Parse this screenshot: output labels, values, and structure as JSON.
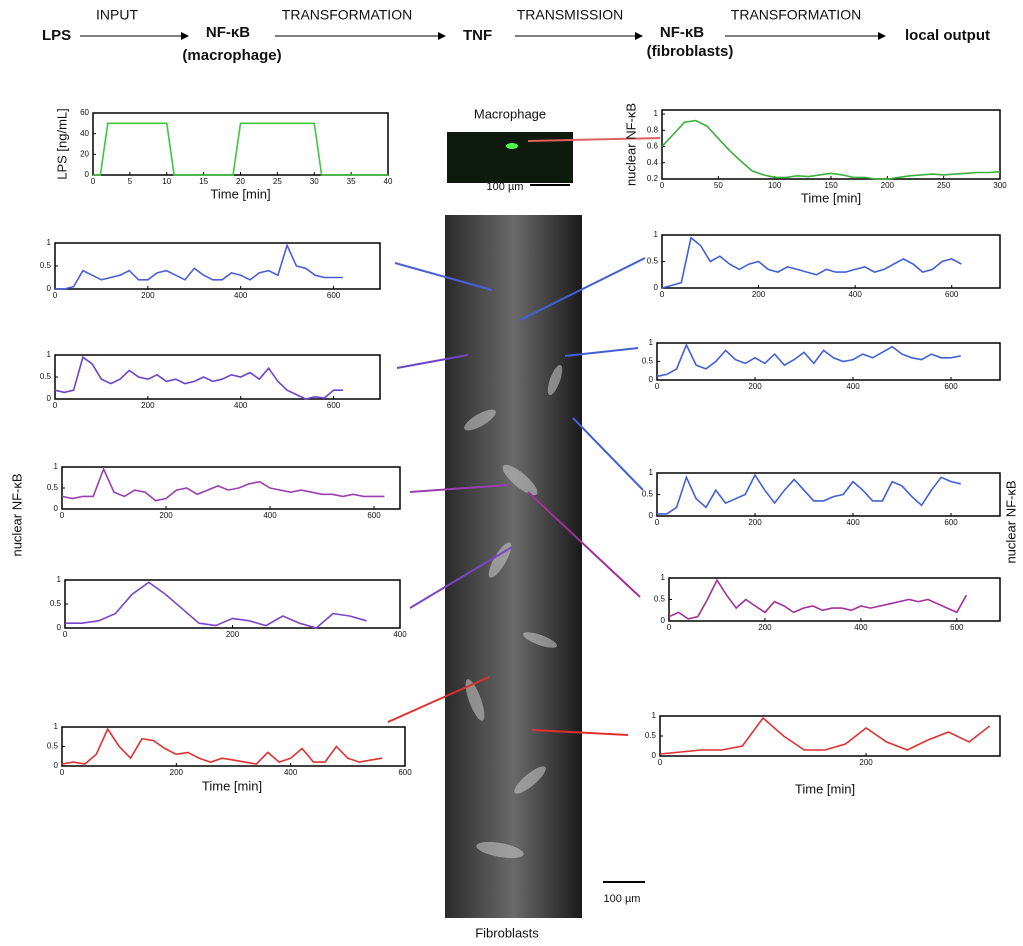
{
  "flow": {
    "nodes": [
      {
        "label": "LPS"
      },
      {
        "label": "NF-κB",
        "sublabel": "(macrophage)"
      },
      {
        "label": "TNF"
      },
      {
        "label": "NF-κB",
        "sublabel": "(fibroblasts)"
      },
      {
        "label": "local output"
      }
    ],
    "steps": [
      "INPUT",
      "TRANSFORMATION",
      "TRANSMISSION",
      "TRANSFORMATION"
    ]
  },
  "images": {
    "macrophage_title": "Macrophage",
    "macrophage_scale": "100 µm",
    "fibroblast_title": "Fibroblasts",
    "fibroblast_scale": "100 µm"
  },
  "left_ylabel": "nuclear NF-κB",
  "right_ylabel": "nuclear NF-κB",
  "left_xlabel": "Time [min]",
  "right_xlabel": "Time [min]",
  "chart_data": [
    {
      "type": "line",
      "ylabel": "LPS [ng/mL]",
      "xlabel": "Time [min]",
      "color": "#3cc83c",
      "xlim": [
        0,
        40
      ],
      "xticks": [
        0,
        5,
        10,
        15,
        20,
        25,
        30,
        35,
        40
      ],
      "ylim": [
        0,
        60
      ],
      "yticks": [
        0,
        20,
        40,
        60
      ],
      "x": [
        0,
        1,
        2,
        10,
        11,
        19,
        20,
        30,
        31,
        40
      ],
      "values": [
        0,
        0,
        50,
        50,
        0,
        0,
        50,
        50,
        0,
        0
      ]
    },
    {
      "type": "line",
      "ylabel": "nuclear NF-κB",
      "xlabel": "Time [min]",
      "color": "#3cb03c",
      "xlim": [
        0,
        300
      ],
      "xticks": [
        0,
        50,
        100,
        150,
        200,
        250,
        300
      ],
      "ylim": [
        0.2,
        1.05
      ],
      "yticks": [
        0.2,
        0.4,
        0.6,
        0.8,
        1
      ],
      "x": [
        0,
        10,
        20,
        30,
        40,
        50,
        60,
        70,
        80,
        90,
        100,
        110,
        120,
        130,
        140,
        150,
        160,
        170,
        180,
        190,
        200,
        210,
        220,
        230,
        240,
        250,
        260,
        270,
        280,
        290,
        300
      ],
      "values": [
        0.6,
        0.75,
        0.9,
        0.92,
        0.85,
        0.7,
        0.55,
        0.42,
        0.3,
        0.25,
        0.22,
        0.22,
        0.24,
        0.23,
        0.25,
        0.27,
        0.25,
        0.22,
        0.22,
        0.2,
        0.2,
        0.22,
        0.24,
        0.25,
        0.26,
        0.25,
        0.26,
        0.27,
        0.28,
        0.28,
        0.29
      ]
    },
    {
      "type": "line",
      "color": "#4a5fd8",
      "xlim": [
        0,
        700
      ],
      "xticks": [
        0,
        200,
        400,
        600
      ],
      "ylim": [
        0,
        1
      ],
      "yticks": [
        0,
        0.5,
        1
      ],
      "x": [
        0,
        20,
        40,
        60,
        80,
        100,
        120,
        140,
        160,
        180,
        200,
        220,
        240,
        260,
        280,
        300,
        320,
        340,
        360,
        380,
        400,
        420,
        440,
        460,
        480,
        500,
        520,
        540,
        560,
        580,
        600,
        620
      ],
      "values": [
        0,
        0,
        0.05,
        0.4,
        0.3,
        0.2,
        0.25,
        0.3,
        0.4,
        0.2,
        0.2,
        0.35,
        0.4,
        0.3,
        0.2,
        0.45,
        0.3,
        0.2,
        0.2,
        0.35,
        0.3,
        0.2,
        0.35,
        0.4,
        0.3,
        0.95,
        0.5,
        0.45,
        0.3,
        0.25,
        0.25,
        0.25
      ]
    },
    {
      "type": "line",
      "color": "#6a45c8",
      "xlim": [
        0,
        700
      ],
      "xticks": [
        0,
        200,
        400,
        600
      ],
      "ylim": [
        0,
        1
      ],
      "yticks": [
        0,
        0.5,
        1
      ],
      "x": [
        0,
        20,
        40,
        60,
        80,
        100,
        120,
        140,
        160,
        180,
        200,
        220,
        240,
        260,
        280,
        300,
        320,
        340,
        360,
        380,
        400,
        420,
        440,
        460,
        480,
        500,
        520,
        540,
        560,
        580,
        600,
        620
      ],
      "values": [
        0.2,
        0.15,
        0.2,
        0.95,
        0.8,
        0.45,
        0.35,
        0.45,
        0.65,
        0.5,
        0.45,
        0.55,
        0.4,
        0.45,
        0.35,
        0.4,
        0.5,
        0.4,
        0.45,
        0.55,
        0.5,
        0.6,
        0.45,
        0.7,
        0.4,
        0.2,
        0.1,
        0,
        0.05,
        0.02,
        0.2,
        0.2
      ]
    },
    {
      "type": "line",
      "color": "#9a3fb0",
      "xlim": [
        0,
        650
      ],
      "xticks": [
        0,
        200,
        400,
        600
      ],
      "ylim": [
        0,
        1
      ],
      "yticks": [
        0,
        0.5,
        1
      ],
      "x": [
        0,
        20,
        40,
        60,
        80,
        100,
        120,
        140,
        160,
        180,
        200,
        220,
        240,
        260,
        280,
        300,
        320,
        340,
        360,
        380,
        400,
        420,
        440,
        460,
        480,
        500,
        520,
        540,
        560,
        580,
        600,
        620
      ],
      "values": [
        0.3,
        0.25,
        0.3,
        0.3,
        0.95,
        0.4,
        0.3,
        0.45,
        0.4,
        0.2,
        0.25,
        0.45,
        0.5,
        0.35,
        0.45,
        0.55,
        0.45,
        0.5,
        0.6,
        0.65,
        0.5,
        0.45,
        0.4,
        0.45,
        0.4,
        0.35,
        0.35,
        0.3,
        0.35,
        0.3,
        0.3,
        0.3
      ]
    },
    {
      "type": "line",
      "color": "#7a45c8",
      "xlim": [
        0,
        400
      ],
      "xticks": [
        0,
        200,
        400
      ],
      "ylim": [
        0,
        1
      ],
      "yticks": [
        0,
        0.5,
        1
      ],
      "x": [
        0,
        20,
        40,
        60,
        80,
        100,
        120,
        140,
        160,
        180,
        200,
        220,
        240,
        260,
        280,
        300,
        320,
        340,
        360
      ],
      "values": [
        0.1,
        0.1,
        0.15,
        0.3,
        0.7,
        0.95,
        0.7,
        0.4,
        0.1,
        0.05,
        0.2,
        0.15,
        0.05,
        0.25,
        0.1,
        0,
        0.3,
        0.25,
        0.15
      ]
    },
    {
      "type": "line",
      "color": "#e03030",
      "xlim": [
        0,
        600
      ],
      "xticks": [
        0,
        200,
        400,
        600
      ],
      "ylim": [
        0,
        1
      ],
      "yticks": [
        0,
        0.5,
        1
      ],
      "x": [
        0,
        20,
        40,
        60,
        80,
        100,
        120,
        140,
        160,
        180,
        200,
        220,
        240,
        260,
        280,
        300,
        320,
        340,
        360,
        380,
        400,
        420,
        440,
        460,
        480,
        500,
        520,
        540,
        560
      ],
      "values": [
        0.05,
        0.1,
        0.05,
        0.3,
        0.95,
        0.5,
        0.2,
        0.7,
        0.65,
        0.45,
        0.3,
        0.35,
        0.2,
        0.1,
        0.2,
        0.15,
        0.1,
        0.05,
        0.35,
        0.1,
        0.2,
        0.45,
        0.1,
        0.1,
        0.5,
        0.2,
        0.1,
        0.15,
        0.2
      ]
    },
    {
      "type": "line",
      "color": "#4060d8",
      "xlim": [
        0,
        700
      ],
      "xticks": [
        0,
        200,
        400,
        600
      ],
      "ylim": [
        0,
        1
      ],
      "yticks": [
        0,
        0.5,
        1
      ],
      "x": [
        0,
        20,
        40,
        60,
        80,
        100,
        120,
        140,
        160,
        180,
        200,
        220,
        240,
        260,
        280,
        300,
        320,
        340,
        360,
        380,
        400,
        420,
        440,
        460,
        480,
        500,
        520,
        540,
        560,
        580,
        600,
        620
      ],
      "values": [
        0,
        0.05,
        0.1,
        0.95,
        0.8,
        0.5,
        0.6,
        0.45,
        0.35,
        0.45,
        0.5,
        0.35,
        0.3,
        0.4,
        0.35,
        0.3,
        0.25,
        0.35,
        0.3,
        0.3,
        0.35,
        0.4,
        0.3,
        0.35,
        0.45,
        0.55,
        0.45,
        0.3,
        0.35,
        0.5,
        0.55,
        0.45
      ]
    },
    {
      "type": "line",
      "color": "#4060d8",
      "xlim": [
        0,
        700
      ],
      "xticks": [
        0,
        200,
        400,
        600
      ],
      "ylim": [
        0,
        1
      ],
      "yticks": [
        0,
        0.5,
        1
      ],
      "x": [
        0,
        20,
        40,
        60,
        80,
        100,
        120,
        140,
        160,
        180,
        200,
        220,
        240,
        260,
        280,
        300,
        320,
        340,
        360,
        380,
        400,
        420,
        440,
        460,
        480,
        500,
        520,
        540,
        560,
        580,
        600,
        620
      ],
      "values": [
        0.1,
        0.15,
        0.3,
        0.95,
        0.4,
        0.3,
        0.5,
        0.8,
        0.55,
        0.45,
        0.6,
        0.45,
        0.7,
        0.4,
        0.55,
        0.75,
        0.45,
        0.8,
        0.6,
        0.5,
        0.55,
        0.7,
        0.6,
        0.75,
        0.9,
        0.7,
        0.6,
        0.55,
        0.7,
        0.6,
        0.6,
        0.65
      ]
    },
    {
      "type": "line",
      "color": "#4060d8",
      "xlim": [
        0,
        700
      ],
      "xticks": [
        0,
        200,
        400,
        600
      ],
      "ylim": [
        0,
        1
      ],
      "yticks": [
        0,
        0.5,
        1
      ],
      "x": [
        0,
        20,
        40,
        60,
        80,
        100,
        120,
        140,
        160,
        180,
        200,
        220,
        240,
        260,
        280,
        300,
        320,
        340,
        360,
        380,
        400,
        420,
        440,
        460,
        480,
        500,
        520,
        540,
        560,
        580,
        600,
        620
      ],
      "values": [
        0.05,
        0.05,
        0.2,
        0.9,
        0.4,
        0.2,
        0.6,
        0.3,
        0.4,
        0.5,
        0.95,
        0.6,
        0.3,
        0.6,
        0.85,
        0.6,
        0.35,
        0.35,
        0.45,
        0.5,
        0.8,
        0.6,
        0.35,
        0.35,
        0.8,
        0.7,
        0.45,
        0.25,
        0.6,
        0.9,
        0.8,
        0.75
      ]
    },
    {
      "type": "line",
      "color": "#a0309a",
      "xlim": [
        0,
        690
      ],
      "xticks": [
        0,
        200,
        400,
        600
      ],
      "ylim": [
        0,
        1
      ],
      "yticks": [
        0,
        0.5,
        1
      ],
      "x": [
        0,
        20,
        40,
        60,
        80,
        100,
        120,
        140,
        160,
        180,
        200,
        220,
        240,
        260,
        280,
        300,
        320,
        340,
        360,
        380,
        400,
        420,
        440,
        460,
        480,
        500,
        520,
        540,
        560,
        580,
        600,
        620
      ],
      "values": [
        0.1,
        0.2,
        0.05,
        0.1,
        0.5,
        0.95,
        0.6,
        0.3,
        0.5,
        0.35,
        0.2,
        0.45,
        0.35,
        0.2,
        0.3,
        0.35,
        0.25,
        0.3,
        0.3,
        0.25,
        0.35,
        0.3,
        0.35,
        0.4,
        0.45,
        0.5,
        0.45,
        0.5,
        0.4,
        0.3,
        0.2,
        0.6
      ]
    },
    {
      "type": "line",
      "color": "#e03030",
      "xlim": [
        0,
        330
      ],
      "xticks": [
        0,
        200
      ],
      "ylim": [
        0,
        1
      ],
      "yticks": [
        0,
        0.5,
        1
      ],
      "x": [
        0,
        20,
        40,
        60,
        80,
        100,
        120,
        140,
        160,
        180,
        200,
        220,
        240,
        260,
        280,
        300,
        320
      ],
      "values": [
        0.05,
        0.1,
        0.15,
        0.15,
        0.25,
        0.95,
        0.5,
        0.15,
        0.15,
        0.3,
        0.7,
        0.35,
        0.15,
        0.4,
        0.6,
        0.35,
        0.75
      ]
    }
  ]
}
